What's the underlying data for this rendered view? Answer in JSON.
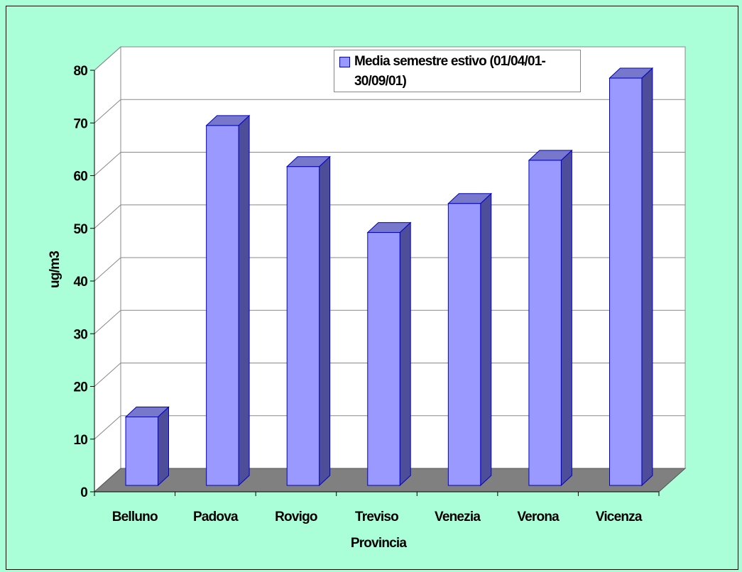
{
  "chart_data": {
    "type": "bar3d",
    "x_label": "Provincia",
    "y_label": "ug/m3",
    "categories": [
      "Belluno",
      "Padova",
      "Rovigo",
      "Treviso",
      "Venezia",
      "Verona",
      "Vicenza"
    ],
    "series": [
      {
        "name": "Media semestre estivo (01/04/01-30/09/01)",
        "color": "#9999ff",
        "values": [
          13,
          68.3,
          60.5,
          48,
          53.5,
          61.7,
          77.3
        ]
      }
    ],
    "ylim": [
      0,
      80
    ],
    "yticks": [
      0,
      10,
      20,
      30,
      40,
      50,
      60,
      70,
      80
    ],
    "grid": true,
    "legend": "top-right"
  }
}
